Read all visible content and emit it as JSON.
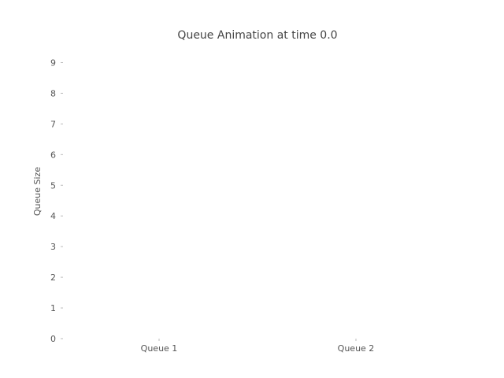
{
  "chart_data": {
    "type": "bar",
    "title": "Queue Animation at time 0.0",
    "xlabel": "",
    "ylabel": "Queue Size",
    "categories": [
      "Queue 1",
      "Queue 2"
    ],
    "values": [
      0,
      0
    ],
    "ylim": [
      0,
      9.5
    ],
    "yticks": [
      0,
      1,
      2,
      3,
      4,
      5,
      6,
      7,
      8,
      9
    ],
    "ytick_labels": [
      "0",
      "1",
      "2",
      "3",
      "4",
      "5",
      "6",
      "7",
      "8",
      "9"
    ],
    "grid": false,
    "legend": "none",
    "colors": {
      "text": "#555555",
      "title": "#444444",
      "tick": "#bbbbbb",
      "bar": "#1f77b4"
    }
  }
}
